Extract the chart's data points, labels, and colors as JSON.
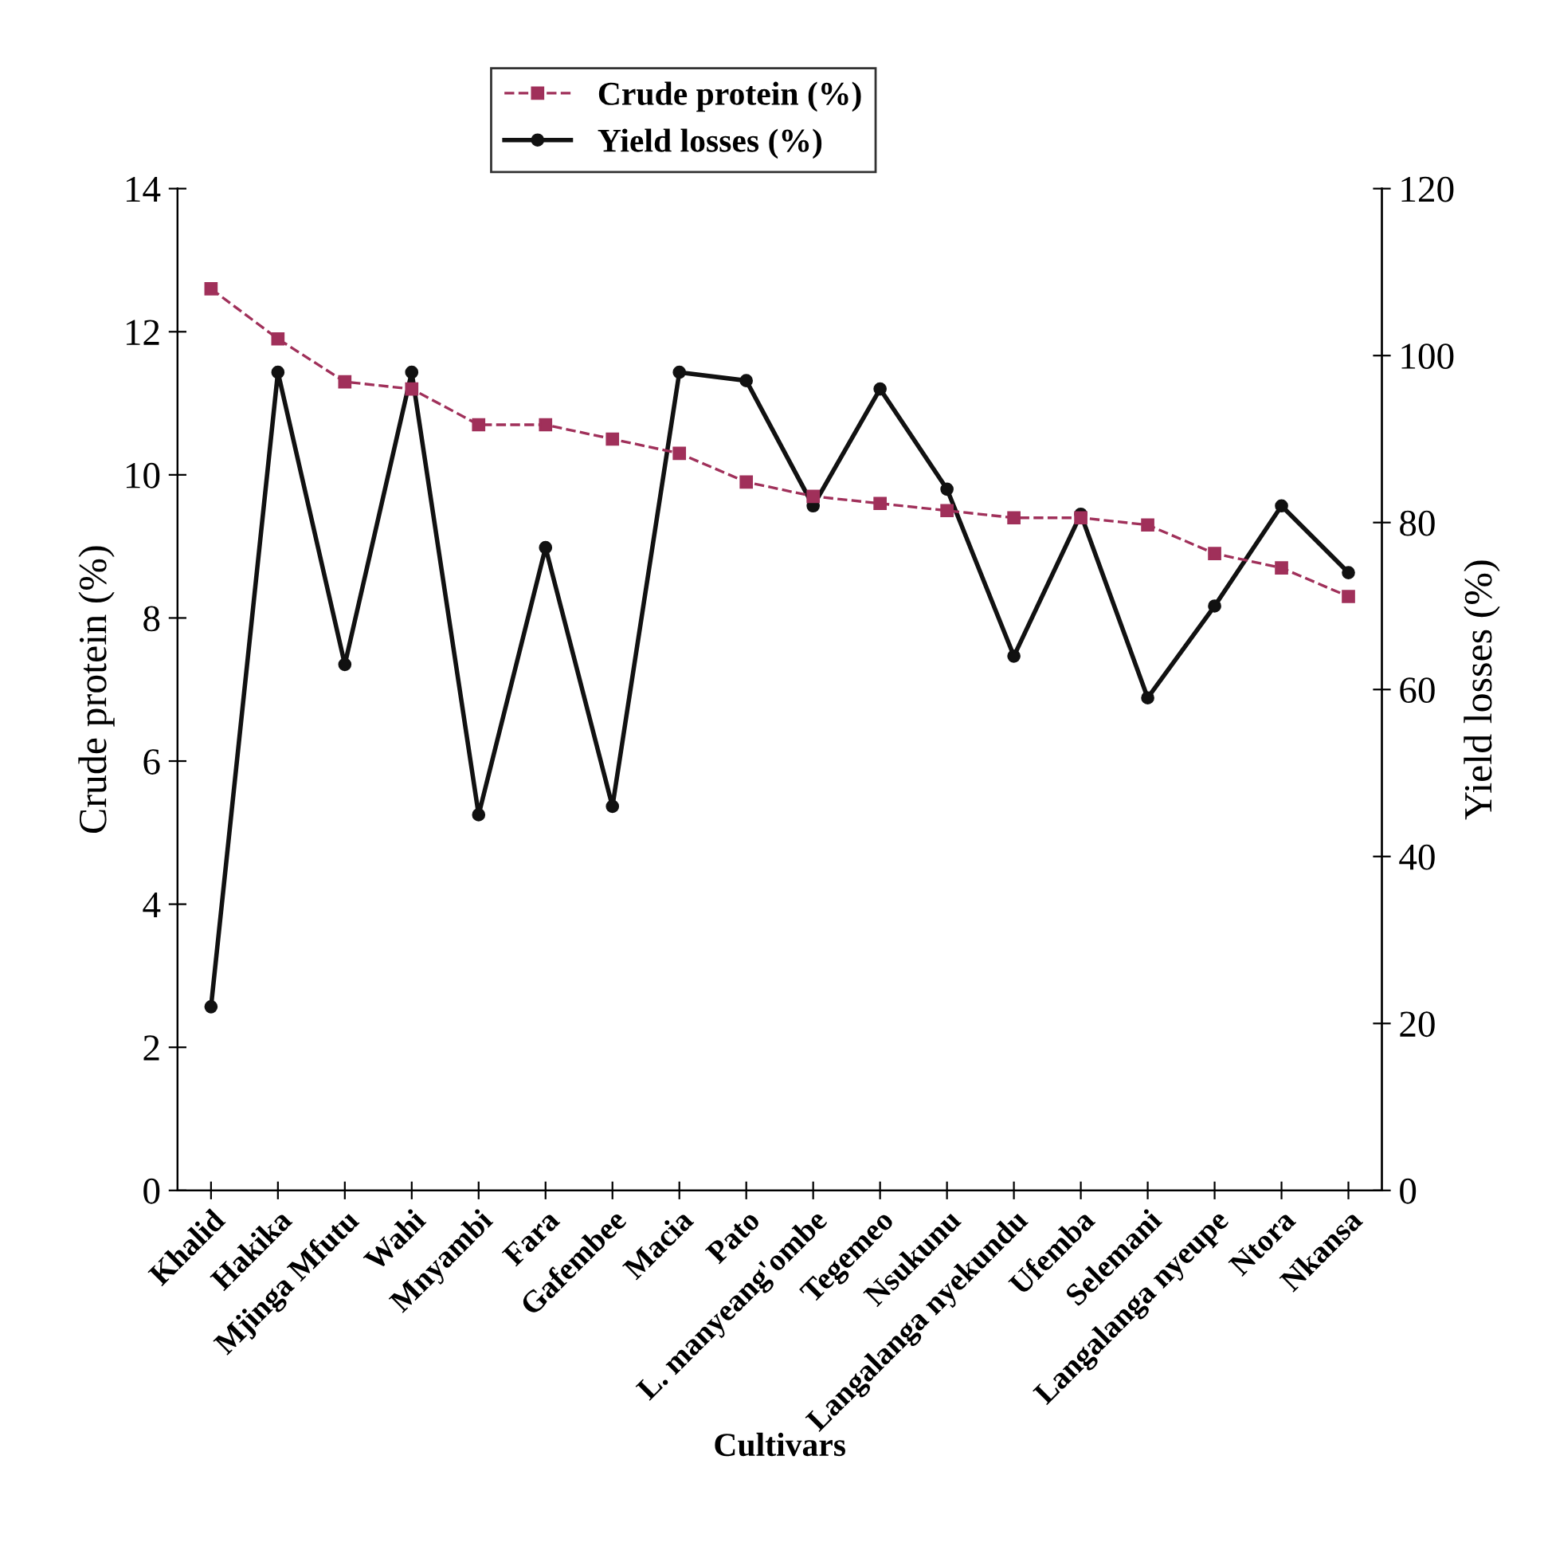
{
  "chart_data": {
    "type": "line",
    "xlabel": "Cultivars",
    "ylabel": "Crude protein (%)",
    "y2label": "Yield losses (%)",
    "categories": [
      "Khalid",
      "Hakika",
      "Mjinga Mfutu",
      "Wahi",
      "Mnyambi",
      "Fara",
      "Gafembee",
      "Macia",
      "Pato",
      "L. manyeang'ombe",
      "Tegemeo",
      "Nsukunu",
      "Langalanga nyekundu",
      "Ufemba",
      "Selemani",
      "Langalanga nyeupe",
      "Ntora",
      "Nkansa"
    ],
    "series": [
      {
        "name": "Crude protein (%)",
        "color": "#a0305a",
        "marker": "square",
        "line_style": "dashed",
        "values": [
          12.6,
          11.9,
          11.3,
          11.2,
          10.7,
          10.7,
          10.5,
          10.3,
          9.9,
          9.7,
          9.6,
          9.5,
          9.4,
          9.4,
          9.3,
          8.9,
          8.7,
          8.3
        ]
      },
      {
        "name": "Yield losses (%)",
        "color": "#111111",
        "marker": "circle",
        "line_style": "solid",
        "axis": "y2",
        "values": [
          22,
          98,
          63,
          98,
          45,
          77,
          46,
          98,
          97,
          82,
          96,
          84,
          64,
          81,
          59,
          70,
          82,
          74
        ]
      }
    ],
    "ylim": [
      0,
      14
    ],
    "yticks": [
      0,
      2,
      4,
      6,
      8,
      10,
      12,
      14
    ],
    "y2lim": [
      0,
      120
    ],
    "y2ticks": [
      0,
      20,
      40,
      60,
      80,
      100,
      120
    ],
    "grid": false,
    "legend": "top"
  }
}
